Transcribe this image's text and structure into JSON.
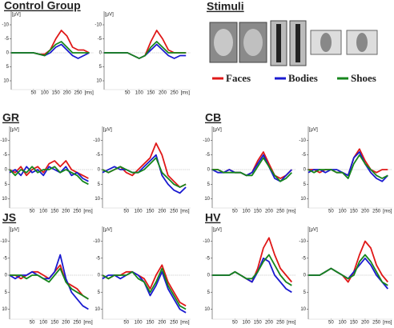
{
  "stimuli_title": "Stimuli",
  "legend": [
    {
      "name": "Faces",
      "color": "#e01818"
    },
    {
      "name": "Bodies",
      "color": "#1a1ad0"
    },
    {
      "name": "Shoes",
      "color": "#16861c"
    }
  ],
  "chart_data": [
    {
      "type": "line",
      "title": "Control Group",
      "ylabel": "[µV]",
      "xlabel": "[ms]",
      "y_inverted": true,
      "zero_line": true,
      "x": [
        -50,
        -25,
        0,
        25,
        50,
        75,
        100,
        125,
        150,
        175,
        200,
        225,
        250,
        275,
        300
      ],
      "xlim": [
        -50,
        320
      ],
      "ylim": [
        -12,
        12
      ],
      "xticks": [
        50,
        100,
        150,
        200,
        250
      ],
      "yticks": [
        -10,
        -5,
        0,
        5,
        10
      ],
      "series": [
        {
          "color": "#e01818",
          "values": [
            0,
            0,
            0,
            0,
            0,
            0.5,
            0.5,
            -1,
            -5,
            -8,
            -6,
            -2,
            -1,
            -1,
            0
          ]
        },
        {
          "color": "#1a1ad0",
          "values": [
            0,
            0,
            0,
            0,
            0,
            0.5,
            1,
            0,
            -2,
            -3,
            -1,
            1,
            2,
            1,
            0
          ]
        },
        {
          "color": "#16861c",
          "values": [
            0,
            0,
            0,
            0,
            0,
            0.5,
            1,
            -1,
            -3,
            -4,
            -2,
            0,
            0,
            0,
            0
          ]
        }
      ]
    },
    {
      "type": "line",
      "ylabel": "[µV]",
      "xlabel": "[ms]",
      "y_inverted": true,
      "zero_line": true,
      "x": [
        -50,
        -25,
        0,
        25,
        50,
        75,
        100,
        125,
        150,
        175,
        200,
        225,
        250,
        275,
        300
      ],
      "xlim": [
        -50,
        320
      ],
      "ylim": [
        -12,
        12
      ],
      "xticks": [
        50,
        100,
        150,
        200,
        250
      ],
      "yticks": [
        -10,
        -5,
        0,
        5,
        10
      ],
      "series": [
        {
          "color": "#e01818",
          "values": [
            0,
            0,
            0,
            0,
            0,
            1,
            2,
            1,
            -4,
            -8,
            -5,
            -1,
            0,
            0,
            0
          ]
        },
        {
          "color": "#1a1ad0",
          "values": [
            0,
            0,
            0,
            0,
            0,
            1,
            2,
            1,
            -1,
            -3,
            -1,
            1,
            2,
            1,
            1
          ]
        },
        {
          "color": "#16861c",
          "values": [
            0,
            0,
            0,
            0,
            0,
            1,
            2,
            1,
            -2,
            -4,
            -2,
            0,
            0,
            0,
            0
          ]
        }
      ]
    },
    {
      "type": "line",
      "title": "GR",
      "ylabel": "[µV]",
      "xlabel": "[ms]",
      "y_inverted": true,
      "zero_line": true,
      "x": [
        -50,
        -25,
        0,
        25,
        50,
        75,
        100,
        125,
        150,
        175,
        200,
        225,
        250,
        275,
        300
      ],
      "xlim": [
        -50,
        320
      ],
      "ylim": [
        -12,
        12
      ],
      "xticks": [
        50,
        100,
        150,
        200,
        250
      ],
      "yticks": [
        -10,
        -5,
        0,
        5,
        10
      ],
      "series": [
        {
          "color": "#e01818",
          "values": [
            0,
            1,
            -1,
            2,
            0,
            -1,
            1,
            -2,
            -3,
            -1,
            -3,
            0,
            1,
            2,
            3
          ]
        },
        {
          "color": "#1a1ad0",
          "values": [
            1,
            0,
            2,
            -1,
            1,
            0,
            2,
            -1,
            0,
            1,
            -1,
            2,
            1,
            3,
            4
          ]
        },
        {
          "color": "#16861c",
          "values": [
            0,
            2,
            0,
            1,
            -1,
            1,
            0,
            0,
            -1,
            1,
            0,
            1,
            2,
            4,
            5
          ]
        }
      ]
    },
    {
      "type": "line",
      "ylabel": "[µV]",
      "xlabel": "[ms]",
      "y_inverted": true,
      "zero_line": true,
      "x": [
        -50,
        -25,
        0,
        25,
        50,
        75,
        100,
        125,
        150,
        175,
        200,
        225,
        250,
        275,
        300
      ],
      "xlim": [
        -50,
        320
      ],
      "ylim": [
        -12,
        12
      ],
      "xticks": [
        50,
        100,
        150,
        200,
        250
      ],
      "yticks": [
        -10,
        -5,
        0,
        5,
        10
      ],
      "series": [
        {
          "color": "#e01818",
          "values": [
            0,
            1,
            0,
            -1,
            1,
            2,
            0,
            -2,
            -4,
            -9,
            -5,
            2,
            4,
            6,
            5
          ]
        },
        {
          "color": "#1a1ad0",
          "values": [
            1,
            0,
            -1,
            0,
            0,
            1,
            1,
            -1,
            -3,
            -5,
            2,
            5,
            7,
            8,
            6
          ]
        },
        {
          "color": "#16861c",
          "values": [
            0,
            1,
            0,
            -1,
            0,
            1,
            1,
            0,
            -2,
            -4,
            1,
            3,
            5,
            6,
            5
          ]
        }
      ]
    },
    {
      "type": "line",
      "title": "CB",
      "ylabel": "[µV]",
      "xlabel": "[ms]",
      "y_inverted": true,
      "zero_line": true,
      "x": [
        -50,
        -25,
        0,
        25,
        50,
        75,
        100,
        125,
        150,
        175,
        200,
        225,
        250,
        275,
        300
      ],
      "xlim": [
        -50,
        320
      ],
      "ylim": [
        -12,
        12
      ],
      "xticks": [
        50,
        100,
        150,
        200,
        250
      ],
      "yticks": [
        -10,
        -5,
        0,
        5,
        10
      ],
      "series": [
        {
          "color": "#e01818",
          "values": [
            0,
            0,
            1,
            0,
            1,
            1,
            2,
            1,
            -3,
            -6,
            -2,
            2,
            3,
            2,
            0
          ]
        },
        {
          "color": "#1a1ad0",
          "values": [
            0,
            1,
            1,
            0,
            1,
            1,
            2,
            1,
            -2,
            -5,
            -1,
            3,
            4,
            2,
            0
          ]
        },
        {
          "color": "#16861c",
          "values": [
            0,
            0,
            1,
            1,
            1,
            1,
            2,
            2,
            -1,
            -4,
            -1,
            2,
            4,
            3,
            1
          ]
        }
      ]
    },
    {
      "type": "line",
      "ylabel": "[µV]",
      "xlabel": "[ms]",
      "y_inverted": true,
      "zero_line": true,
      "x": [
        -50,
        -25,
        0,
        25,
        50,
        75,
        100,
        125,
        150,
        175,
        200,
        225,
        250,
        275,
        300
      ],
      "xlim": [
        -50,
        320
      ],
      "ylim": [
        -12,
        12
      ],
      "xticks": [
        50,
        100,
        150,
        200,
        250
      ],
      "yticks": [
        -10,
        -5,
        0,
        5,
        10
      ],
      "series": [
        {
          "color": "#e01818",
          "values": [
            0,
            0,
            1,
            0,
            0,
            1,
            1,
            2,
            -4,
            -7,
            -3,
            0,
            1,
            0,
            0
          ]
        },
        {
          "color": "#1a1ad0",
          "values": [
            1,
            0,
            0,
            1,
            0,
            0,
            1,
            2,
            -4,
            -6,
            -2,
            1,
            3,
            4,
            2
          ]
        },
        {
          "color": "#16861c",
          "values": [
            0,
            1,
            0,
            0,
            0,
            1,
            1,
            3,
            -2,
            -5,
            -2,
            0,
            2,
            3,
            2
          ]
        }
      ]
    },
    {
      "type": "line",
      "title": "JS",
      "ylabel": "[µV]",
      "xlabel": "[ms]",
      "y_inverted": true,
      "zero_line": true,
      "x": [
        -50,
        -25,
        0,
        25,
        50,
        75,
        100,
        125,
        150,
        175,
        200,
        225,
        250,
        275,
        300
      ],
      "xlim": [
        -50,
        320
      ],
      "ylim": [
        -12,
        12
      ],
      "xticks": [
        50,
        100,
        150,
        200,
        250
      ],
      "yticks": [
        -10,
        -5,
        0,
        5,
        10
      ],
      "series": [
        {
          "color": "#e01818",
          "values": [
            0,
            0,
            1,
            0,
            -1,
            -1,
            0,
            1,
            -1,
            -3,
            2,
            3,
            4,
            6,
            7
          ]
        },
        {
          "color": "#1a1ad0",
          "values": [
            0,
            1,
            0,
            0,
            -1,
            0,
            1,
            1,
            -1,
            -6,
            1,
            5,
            7,
            9,
            10
          ]
        },
        {
          "color": "#16861c",
          "values": [
            0,
            0,
            0,
            1,
            0,
            0,
            1,
            2,
            0,
            -2,
            2,
            4,
            5,
            6,
            7
          ]
        }
      ]
    },
    {
      "type": "line",
      "ylabel": "[µV]",
      "xlabel": "[ms]",
      "y_inverted": true,
      "zero_line": true,
      "x": [
        -50,
        -25,
        0,
        25,
        50,
        75,
        100,
        125,
        150,
        175,
        200,
        225,
        250,
        275,
        300
      ],
      "xlim": [
        -50,
        320
      ],
      "ylim": [
        -12,
        12
      ],
      "xticks": [
        50,
        100,
        150,
        200,
        250
      ],
      "yticks": [
        -10,
        -5,
        0,
        5,
        10
      ],
      "series": [
        {
          "color": "#e01818",
          "values": [
            0,
            1,
            0,
            0,
            -1,
            -1,
            0,
            1,
            4,
            0,
            -3,
            2,
            5,
            8,
            9
          ]
        },
        {
          "color": "#1a1ad0",
          "values": [
            1,
            0,
            0,
            1,
            0,
            -1,
            0,
            2,
            6,
            3,
            -1,
            4,
            7,
            10,
            11
          ]
        },
        {
          "color": "#16861c",
          "values": [
            0,
            1,
            0,
            0,
            0,
            -1,
            1,
            2,
            5,
            2,
            -2,
            3,
            6,
            9,
            10
          ]
        }
      ]
    },
    {
      "type": "line",
      "title": "HV",
      "ylabel": "[µV]",
      "xlabel": "[ms]",
      "y_inverted": true,
      "zero_line": true,
      "x": [
        -50,
        -25,
        0,
        25,
        50,
        75,
        100,
        125,
        150,
        175,
        200,
        225,
        250,
        275,
        300
      ],
      "xlim": [
        -50,
        320
      ],
      "ylim": [
        -12,
        12
      ],
      "xticks": [
        50,
        100,
        150,
        200,
        250
      ],
      "yticks": [
        -10,
        -5,
        0,
        5,
        10
      ],
      "series": [
        {
          "color": "#e01818",
          "values": [
            0,
            0,
            0,
            0,
            -1,
            0,
            1,
            2,
            -2,
            -8,
            -11,
            -6,
            -2,
            0,
            2
          ]
        },
        {
          "color": "#1a1ad0",
          "values": [
            0,
            0,
            0,
            0,
            -1,
            0,
            1,
            2,
            -1,
            -5,
            -4,
            0,
            2,
            4,
            5
          ]
        },
        {
          "color": "#16861c",
          "values": [
            0,
            0,
            0,
            0,
            -1,
            0,
            1,
            1,
            -1,
            -4,
            -6,
            -3,
            0,
            2,
            3
          ]
        }
      ]
    },
    {
      "type": "line",
      "ylabel": "[µV]",
      "xlabel": "[ms]",
      "y_inverted": true,
      "zero_line": true,
      "x": [
        -50,
        -25,
        0,
        25,
        50,
        75,
        100,
        125,
        150,
        175,
        200,
        225,
        250,
        275,
        300
      ],
      "xlim": [
        -50,
        320
      ],
      "ylim": [
        -12,
        12
      ],
      "xticks": [
        50,
        100,
        150,
        200,
        250
      ],
      "yticks": [
        -10,
        -5,
        0,
        5,
        10
      ],
      "series": [
        {
          "color": "#e01818",
          "values": [
            0,
            0,
            0,
            -1,
            -2,
            -1,
            0,
            2,
            -1,
            -6,
            -10,
            -8,
            -3,
            0,
            2
          ]
        },
        {
          "color": "#1a1ad0",
          "values": [
            0,
            0,
            0,
            -1,
            -2,
            -1,
            0,
            1,
            -1,
            -3,
            -5,
            -3,
            0,
            2,
            4
          ]
        },
        {
          "color": "#16861c",
          "values": [
            0,
            0,
            0,
            -1,
            -2,
            -1,
            0,
            1,
            0,
            -4,
            -6,
            -4,
            -1,
            2,
            3
          ]
        }
      ]
    }
  ]
}
